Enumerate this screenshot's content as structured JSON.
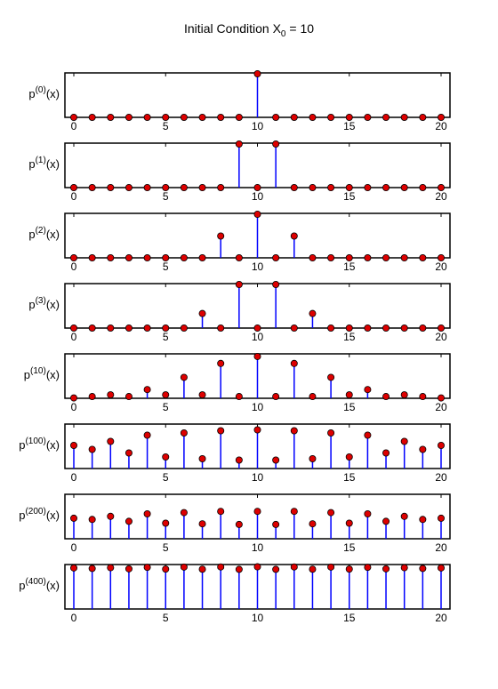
{
  "title": {
    "text": "Initial Condition X",
    "subscript": "0",
    "suffix": " = 10"
  },
  "colors": {
    "stem": "#0000ff",
    "marker_fill": "#dd0000",
    "marker_edge": "#000000",
    "axes": "#000000",
    "background": "#ffffff"
  },
  "chart_data": [
    {
      "type": "stem",
      "ylabel": {
        "base": "p",
        "sup": "(0)",
        "suffix": "(x)"
      },
      "xlim": [
        0,
        20
      ],
      "ylim": [
        0,
        1
      ],
      "xticks": [
        0,
        5,
        10,
        15,
        20
      ],
      "x": [
        0,
        1,
        2,
        3,
        4,
        5,
        6,
        7,
        8,
        9,
        10,
        11,
        12,
        13,
        14,
        15,
        16,
        17,
        18,
        19,
        20
      ],
      "values": [
        0,
        0,
        0,
        0,
        0,
        0,
        0,
        0,
        0,
        0,
        1,
        0,
        0,
        0,
        0,
        0,
        0,
        0,
        0,
        0,
        0
      ]
    },
    {
      "type": "stem",
      "ylabel": {
        "base": "p",
        "sup": "(1)",
        "suffix": "(x)"
      },
      "xlim": [
        0,
        20
      ],
      "ylim": [
        0,
        0.5
      ],
      "xticks": [
        0,
        5,
        10,
        15,
        20
      ],
      "x": [
        0,
        1,
        2,
        3,
        4,
        5,
        6,
        7,
        8,
        9,
        10,
        11,
        12,
        13,
        14,
        15,
        16,
        17,
        18,
        19,
        20
      ],
      "values": [
        0,
        0,
        0,
        0,
        0,
        0,
        0,
        0,
        0,
        0.5,
        0,
        0.5,
        0,
        0,
        0,
        0,
        0,
        0,
        0,
        0,
        0
      ]
    },
    {
      "type": "stem",
      "ylabel": {
        "base": "p",
        "sup": "(2)",
        "suffix": "(x)"
      },
      "xlim": [
        0,
        20
      ],
      "ylim": [
        0,
        0.5
      ],
      "xticks": [
        0,
        5,
        10,
        15,
        20
      ],
      "x": [
        0,
        1,
        2,
        3,
        4,
        5,
        6,
        7,
        8,
        9,
        10,
        11,
        12,
        13,
        14,
        15,
        16,
        17,
        18,
        19,
        20
      ],
      "values": [
        0,
        0,
        0,
        0,
        0,
        0,
        0,
        0,
        0.25,
        0,
        0.5,
        0,
        0.25,
        0,
        0,
        0,
        0,
        0,
        0,
        0,
        0
      ]
    },
    {
      "type": "stem",
      "ylabel": {
        "base": "p",
        "sup": "(3)",
        "suffix": "(x)"
      },
      "xlim": [
        0,
        20
      ],
      "ylim": [
        0,
        0.375
      ],
      "xticks": [
        0,
        5,
        10,
        15,
        20
      ],
      "x": [
        0,
        1,
        2,
        3,
        4,
        5,
        6,
        7,
        8,
        9,
        10,
        11,
        12,
        13,
        14,
        15,
        16,
        17,
        18,
        19,
        20
      ],
      "values": [
        0,
        0,
        0,
        0,
        0,
        0,
        0,
        0.125,
        0,
        0.375,
        0,
        0.375,
        0,
        0.125,
        0,
        0,
        0,
        0,
        0,
        0,
        0
      ]
    },
    {
      "type": "stem",
      "ylabel": {
        "base": "p",
        "sup": "(10)",
        "suffix": "(x)"
      },
      "xlim": [
        0,
        20
      ],
      "ylim": [
        0,
        0.25
      ],
      "xticks": [
        0,
        5,
        10,
        15,
        20
      ],
      "x": [
        0,
        1,
        2,
        3,
        4,
        5,
        6,
        7,
        8,
        9,
        10,
        11,
        12,
        13,
        14,
        15,
        16,
        17,
        18,
        19,
        20
      ],
      "values": [
        0.002,
        0.01,
        0.02,
        0.01,
        0.05,
        0.02,
        0.12,
        0.02,
        0.2,
        0.01,
        0.24,
        0.01,
        0.2,
        0.01,
        0.12,
        0.02,
        0.05,
        0.01,
        0.02,
        0.01,
        0.002
      ]
    },
    {
      "type": "stem",
      "ylabel": {
        "base": "p",
        "sup": "(100)",
        "suffix": "(x)"
      },
      "xlim": [
        0,
        20
      ],
      "ylim": [
        0,
        0.098
      ],
      "xticks": [
        0,
        5,
        10,
        15,
        20
      ],
      "x": [
        0,
        1,
        2,
        3,
        4,
        5,
        6,
        7,
        8,
        9,
        10,
        11,
        12,
        13,
        14,
        15,
        16,
        17,
        18,
        19,
        20
      ],
      "values": [
        0.052,
        0.043,
        0.061,
        0.035,
        0.075,
        0.026,
        0.08,
        0.022,
        0.085,
        0.019,
        0.087,
        0.019,
        0.085,
        0.022,
        0.08,
        0.026,
        0.075,
        0.035,
        0.061,
        0.043,
        0.052
      ]
    },
    {
      "type": "stem",
      "ylabel": {
        "base": "p",
        "sup": "(200)",
        "suffix": "(x)"
      },
      "xlim": [
        0,
        20
      ],
      "ylim": [
        0,
        0.07
      ],
      "xticks": [
        0,
        5,
        10,
        15,
        20
      ],
      "x": [
        0,
        1,
        2,
        3,
        4,
        5,
        6,
        7,
        8,
        9,
        10,
        11,
        12,
        13,
        14,
        15,
        16,
        17,
        18,
        19,
        20
      ],
      "values": [
        0.033,
        0.031,
        0.036,
        0.028,
        0.04,
        0.025,
        0.042,
        0.024,
        0.044,
        0.023,
        0.044,
        0.023,
        0.044,
        0.024,
        0.042,
        0.025,
        0.04,
        0.028,
        0.036,
        0.031,
        0.033
      ]
    },
    {
      "type": "stem",
      "ylabel": {
        "base": "p",
        "sup": "(400)",
        "suffix": "(x)"
      },
      "xlim": [
        0,
        20
      ],
      "ylim": [
        0,
        0.0345
      ],
      "xticks": [
        0,
        5,
        10,
        15,
        20
      ],
      "x": [
        0,
        1,
        2,
        3,
        4,
        5,
        6,
        7,
        8,
        9,
        10,
        11,
        12,
        13,
        14,
        15,
        16,
        17,
        18,
        19,
        20
      ],
      "values": [
        0.0325,
        0.0321,
        0.0327,
        0.0318,
        0.033,
        0.0316,
        0.0332,
        0.0315,
        0.0333,
        0.0314,
        0.0334,
        0.0314,
        0.0333,
        0.0315,
        0.0332,
        0.0316,
        0.033,
        0.0318,
        0.0327,
        0.0321,
        0.0325
      ]
    }
  ]
}
